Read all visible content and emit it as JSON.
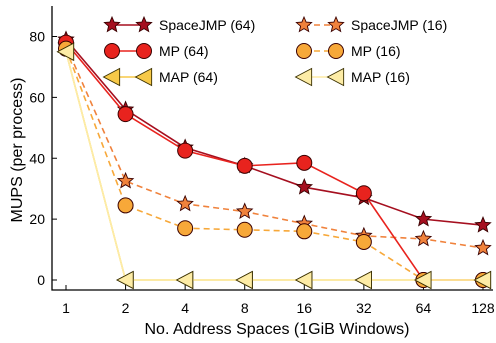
{
  "chart_data": {
    "type": "line",
    "xlabel": "No. Address Spaces (1GiB Windows)",
    "ylabel": "MUPS (per process)",
    "x": [
      1,
      2,
      4,
      8,
      16,
      32,
      64,
      128
    ],
    "x_tick_labels": [
      "1",
      "2",
      "4",
      "8",
      "16",
      "32",
      "64",
      "128"
    ],
    "x_scale": "log2",
    "ylim": [
      -5,
      90
    ],
    "y_ticks": [
      0,
      20,
      40,
      60,
      80
    ],
    "grid": false,
    "legend_placement": "top-right",
    "series": [
      {
        "name": "SpaceJMP (64)",
        "values": [
          79,
          56,
          43.5,
          37.5,
          30.5,
          27,
          20,
          18
        ],
        "color": "#a50f1f",
        "marker": "star",
        "line": "solid"
      },
      {
        "name": "SpaceJMP (16)",
        "values": [
          77,
          32.5,
          25,
          22.5,
          18.5,
          14.5,
          13.5,
          10.5
        ],
        "color": "#f0823c",
        "marker": "star",
        "line": "dashed"
      },
      {
        "name": "MP (64)",
        "values": [
          78,
          54.5,
          42.5,
          37.5,
          38.5,
          28.5,
          0,
          0
        ],
        "color": "#e8231e",
        "marker": "circle",
        "line": "solid"
      },
      {
        "name": "MP (16)",
        "values": [
          76,
          24.5,
          17,
          16.5,
          16,
          12.5,
          0,
          0
        ],
        "color": "#f7a839",
        "marker": "circle",
        "line": "dashed"
      },
      {
        "name": "MAP (64)",
        "values": [
          75,
          0,
          0,
          0,
          0,
          0,
          0,
          0
        ],
        "color": "#f7c948",
        "marker": "triangle-left",
        "line": "solid"
      },
      {
        "name": "MAP (16)",
        "values": [
          75,
          0,
          0,
          0,
          0,
          0,
          0,
          0
        ],
        "color": "#fdeca6",
        "marker": "triangle-left",
        "line": "solid"
      }
    ]
  }
}
